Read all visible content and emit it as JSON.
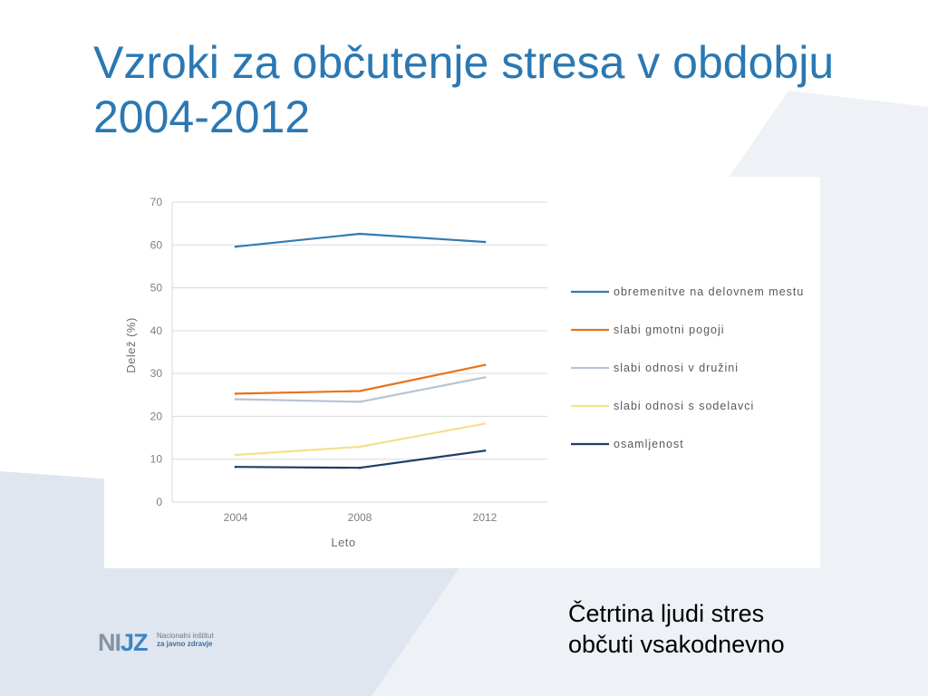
{
  "slide": {
    "title": "Vzroki za občutenje stresa v obdobju 2004-2012",
    "note": "Četrtina ljudi stres občuti vsakodnevno"
  },
  "logo": {
    "mark_left": "NI",
    "mark_right": "JZ",
    "line1": "Nacionalni inštitut",
    "line2": "za javno zdravje"
  },
  "colors": {
    "title": "#2b78b2",
    "background_left": "#dfe6ef",
    "background_right": "#eef1f5"
  },
  "chart_data": {
    "type": "line",
    "x": [
      2004,
      2008,
      2012
    ],
    "xlabel": "Leto",
    "ylabel": "Delež (%)",
    "ylim": [
      0,
      70
    ],
    "yticks": [
      0,
      10,
      20,
      30,
      40,
      50,
      60,
      70
    ],
    "grid": true,
    "legend_position": "right",
    "series": [
      {
        "name": "obremenitve na delovnem mestu",
        "color": "#2f7bb6",
        "values": [
          59.6,
          62.6,
          60.7
        ]
      },
      {
        "name": "slabi gmotni pogoji",
        "color": "#e8731c",
        "values": [
          25.3,
          25.9,
          32.0
        ]
      },
      {
        "name": "slabi odnosi v družini",
        "color": "#b7c3d3",
        "values": [
          24.0,
          23.4,
          29.1
        ]
      },
      {
        "name": "slabi odnosi s sodelavci",
        "color": "#f6e08b",
        "values": [
          11.0,
          12.9,
          18.3
        ]
      },
      {
        "name": "osamljenost",
        "color": "#1c3f63",
        "values": [
          8.2,
          8.0,
          12.0
        ]
      }
    ]
  }
}
